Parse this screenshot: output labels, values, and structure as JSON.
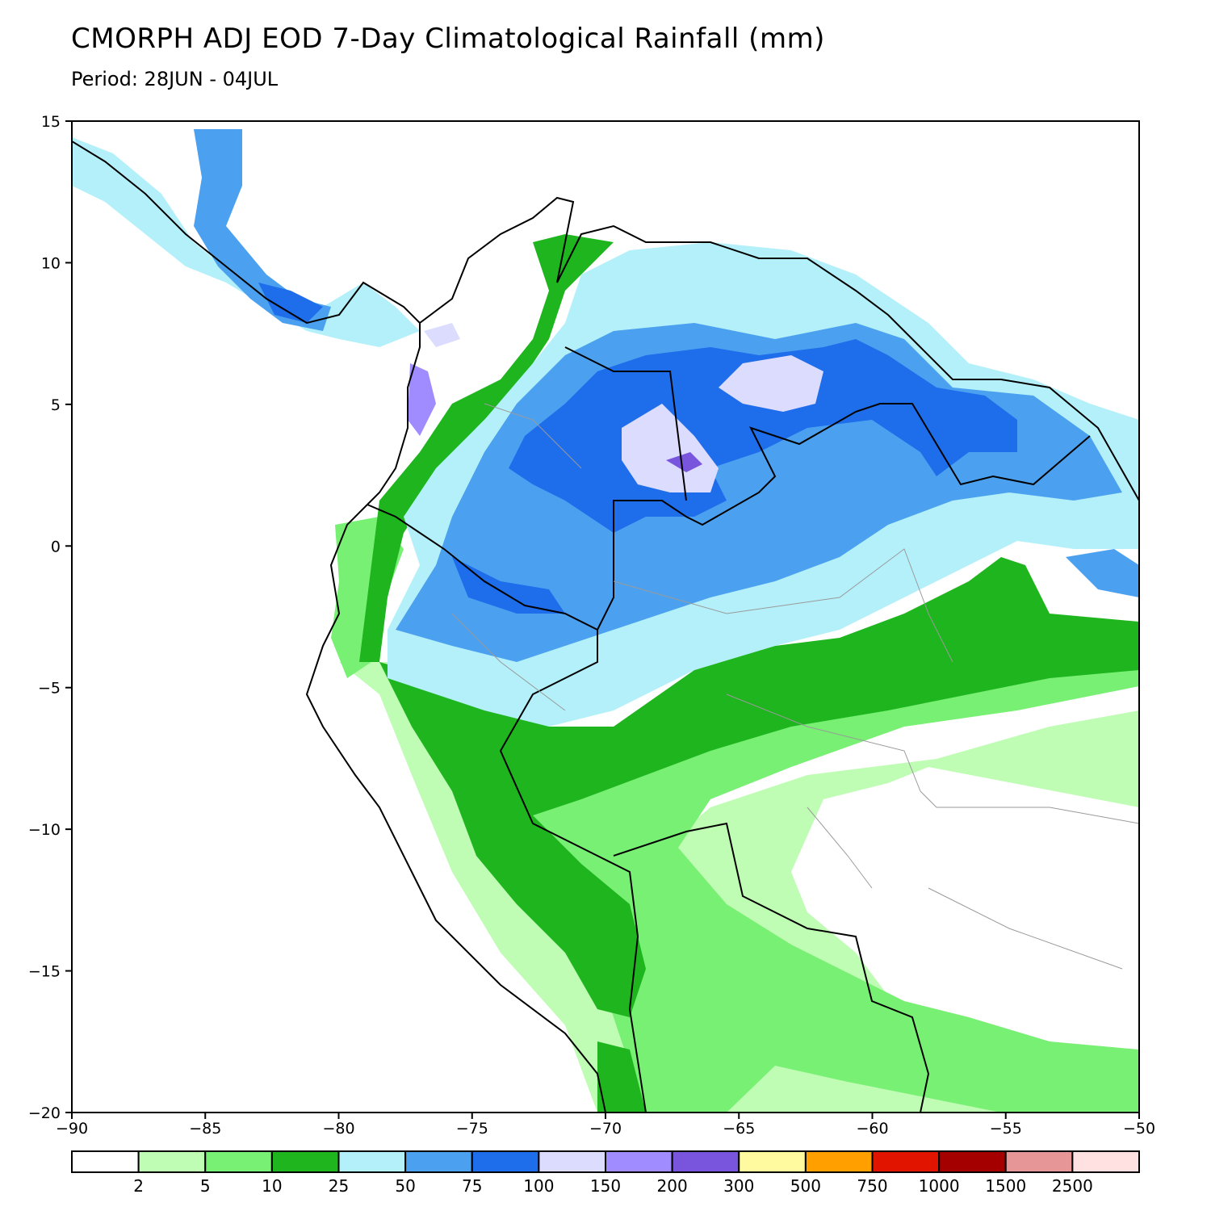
{
  "header": {
    "title": "CMORPH ADJ EOD 7-Day Climatological Rainfall (mm)",
    "subtitle": "Period: 28JUN - 04JUL"
  },
  "map": {
    "type": "heatmap",
    "units": "mm",
    "lon_range": [
      -90,
      -50
    ],
    "lat_range": [
      -20,
      15
    ],
    "x_ticks": [
      -90,
      -85,
      -80,
      -75,
      -70,
      -65,
      -60,
      -55,
      -50
    ],
    "x_tick_labels": [
      "−90",
      "−85",
      "−80",
      "−75",
      "−70",
      "−65",
      "−60",
      "−55",
      "−50"
    ],
    "y_ticks": [
      15,
      10,
      5,
      0,
      -5,
      -10,
      -15,
      -20
    ],
    "y_tick_labels": [
      "15",
      "10",
      "5",
      "0",
      "−5",
      "−10",
      "−15",
      "−20"
    ]
  },
  "colorbar": {
    "colors": [
      "#ffffff",
      "#bffcb4",
      "#78f073",
      "#1fb51f",
      "#b4f0fa",
      "#4ba1f0",
      "#1e6deb",
      "#dcdcff",
      "#a08cff",
      "#7855dc",
      "#fffaa0",
      "#ffa000",
      "#e11400",
      "#a50000",
      "#e69696",
      "#ffe1e1"
    ],
    "labels": [
      "2",
      "5",
      "10",
      "25",
      "50",
      "75",
      "100",
      "150",
      "200",
      "300",
      "500",
      "750",
      "1000",
      "1500",
      "2500"
    ]
  },
  "chart_data": {
    "type": "heatmap",
    "title": "CMORPH ADJ EOD 7-Day Climatological Rainfall (mm)",
    "subtitle": "Period: 28JUN - 04JUL",
    "x": [
      -90,
      -85,
      -80,
      -75,
      -70,
      -65,
      -60,
      -55,
      -50
    ],
    "y": [
      15,
      10,
      5,
      0,
      -5,
      -10,
      -15,
      -20
    ],
    "xlim": [
      -90,
      -50
    ],
    "ylim": [
      -20,
      15
    ],
    "levels": [
      2,
      5,
      10,
      25,
      50,
      75,
      100,
      150,
      200,
      300,
      500,
      750,
      1000,
      1500,
      2500
    ],
    "regions_mm": [
      {
        "lon": -66,
        "lat": 2.5,
        "value": 175
      },
      {
        "lon": -62,
        "lat": 5.5,
        "value": 150
      },
      {
        "lon": -77.5,
        "lat": 5,
        "value": 200
      },
      {
        "lon": -72,
        "lat": 2,
        "value": 85
      },
      {
        "lon": -60,
        "lat": 0,
        "value": 45
      },
      {
        "lon": -58,
        "lat": -5.5,
        "value": 20
      },
      {
        "lon": -62,
        "lat": -12,
        "value": 4
      },
      {
        "lon": -85,
        "lat": -8,
        "value": 0
      },
      {
        "lon": -57,
        "lat": -16,
        "value": 1
      }
    ]
  }
}
